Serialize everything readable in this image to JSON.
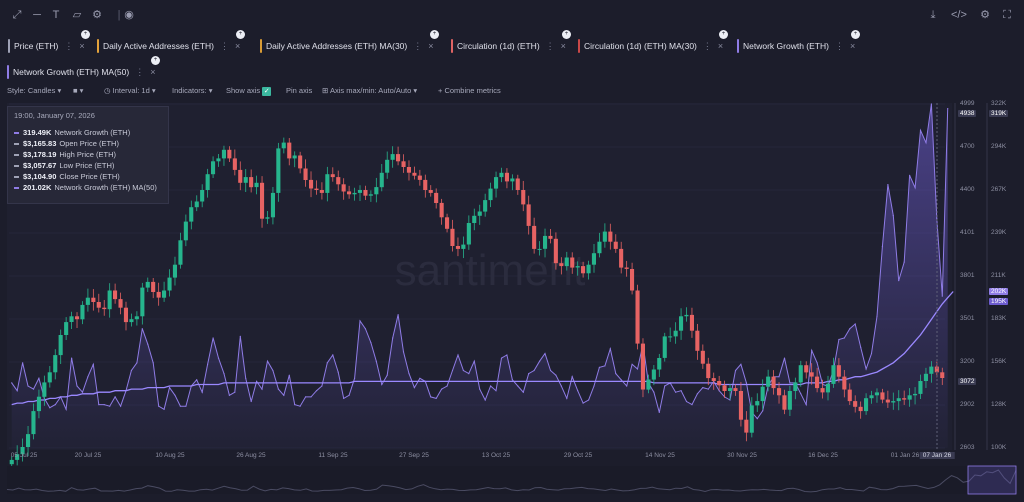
{
  "toolbar": {
    "left_icons": [
      "expand-icon",
      "line-tool-icon",
      "text-tool-icon",
      "note-icon",
      "settings-cog-icon",
      "eye-icon"
    ],
    "right_icons": [
      "download-icon",
      "embed-code-icon",
      "settings-icon",
      "fullscreen-icon"
    ]
  },
  "metrics": [
    {
      "label": "Price (ETH)",
      "color": "#9fa2b6"
    },
    {
      "label": "Daily Active Addresses (ETH)",
      "color": "#e3a23b"
    },
    {
      "label": "Daily Active Addresses (ETH) MA(30)",
      "color": "#d99b35"
    },
    {
      "label": "Circulation (1d) (ETH)",
      "color": "#e06464"
    },
    {
      "label": "Circulation (1d) (ETH) MA(30)",
      "color": "#c94848"
    },
    {
      "label": "Network Growth (ETH)",
      "color": "#8f7ce6"
    },
    {
      "label": "Network Growth (ETH) MA(50)",
      "color": "#8f7ce6"
    }
  ],
  "options": {
    "style": "Style: Candles",
    "interval": "Interval: 1d",
    "indicators": "Indicators:",
    "show_axis": "Show axis",
    "pin_axis": "Pin axis",
    "axis_max_min": "Axis max/min: Auto/Auto",
    "combine": "Combine metrics"
  },
  "tooltip": {
    "date": "19:00, January 07, 2026",
    "rows": [
      {
        "value": "319.49K",
        "label": "Network Growth (ETH)",
        "color": "#8f7ce6"
      },
      {
        "value": "$3,165.83",
        "label": "Open Price (ETH)",
        "color": "#9fa2b6"
      },
      {
        "value": "$3,178.19",
        "label": "High Price (ETH)",
        "color": "#9fa2b6"
      },
      {
        "value": "$3,057.67",
        "label": "Low Price (ETH)",
        "color": "#9fa2b6"
      },
      {
        "value": "$3,104.90",
        "label": "Close Price (ETH)",
        "color": "#9fa2b6"
      },
      {
        "value": "201.02K",
        "label": "Network Growth (ETH) MA(50)",
        "color": "#8f7ce6"
      }
    ]
  },
  "watermark": "santiment",
  "chart_data": {
    "type": "line",
    "x_ticks": [
      "05 Jul 25",
      "20 Jul 25",
      "10 Aug 25",
      "26 Aug 25",
      "11 Sep 25",
      "27 Sep 25",
      "13 Oct 25",
      "29 Oct 25",
      "14 Nov 25",
      "30 Nov 25",
      "16 Dec 25",
      "01 Jan 26",
      "07 Jan 26"
    ],
    "x_crosshair_label": "07 Jan 26",
    "price_axis": {
      "ticks": [
        "4999",
        "4700",
        "4400",
        "4101",
        "3801",
        "3501",
        "3200",
        "2902",
        "2603"
      ],
      "crosshair": "4938",
      "current": "3072"
    },
    "ng_axis": {
      "ticks": [
        "322K",
        "294K",
        "267K",
        "239K",
        "211K",
        "183K",
        "156K",
        "128K",
        "100K"
      ],
      "crosshair": "319K",
      "ma_badge": "202K",
      "current_badge": "195K"
    },
    "price_close": [
      2520,
      2560,
      2610,
      2700,
      2860,
      2960,
      3060,
      3130,
      3250,
      3390,
      3480,
      3520,
      3500,
      3600,
      3650,
      3620,
      3580,
      3570,
      3700,
      3640,
      3580,
      3480,
      3500,
      3520,
      3720,
      3760,
      3690,
      3650,
      3700,
      3790,
      3880,
      4050,
      4180,
      4280,
      4320,
      4400,
      4510,
      4600,
      4620,
      4680,
      4620,
      4540,
      4450,
      4490,
      4420,
      4450,
      4200,
      4210,
      4380,
      4690,
      4730,
      4620,
      4640,
      4550,
      4470,
      4410,
      4400,
      4380,
      4510,
      4490,
      4440,
      4390,
      4370,
      4380,
      4400,
      4360,
      4370,
      4420,
      4520,
      4610,
      4650,
      4600,
      4560,
      4520,
      4500,
      4470,
      4400,
      4380,
      4310,
      4210,
      4130,
      4010,
      3990,
      4020,
      4170,
      4220,
      4250,
      4330,
      4410,
      4490,
      4520,
      4460,
      4480,
      4400,
      4300,
      4150,
      3990,
      3990,
      4080,
      4060,
      3890,
      3870,
      3930,
      3860,
      3870,
      3820,
      3880,
      3960,
      4040,
      4110,
      4040,
      3990,
      3860,
      3850,
      3700,
      3330,
      3010,
      3080,
      3150,
      3230,
      3380,
      3380,
      3420,
      3520,
      3530,
      3420,
      3280,
      3190,
      3090,
      3070,
      3040,
      3000,
      3020,
      3000,
      2800,
      2710,
      2900,
      2930,
      3030,
      3100,
      3020,
      2970,
      2870,
      3000,
      3060,
      3180,
      3130,
      3100,
      3020,
      2990,
      3050,
      3180,
      3100,
      3010,
      2930,
      2890,
      2860,
      2950,
      2970,
      2990,
      2940,
      2920,
      2930,
      2950,
      2940,
      2970,
      2980,
      3070,
      3120,
      3170,
      3130,
      3090
    ],
    "price_range": [
      2603,
      4999
    ],
    "network_growth_k": [
      142,
      137,
      155,
      140,
      138,
      145,
      132,
      126,
      128,
      133,
      125,
      158,
      140,
      136,
      146,
      154,
      128,
      128,
      127,
      133,
      127,
      137,
      150,
      155,
      177,
      167,
      155,
      127,
      125,
      139,
      134,
      127,
      127,
      140,
      144,
      136,
      154,
      171,
      158,
      148,
      134,
      136,
      172,
      145,
      130,
      143,
      138,
      156,
      150,
      138,
      134,
      147,
      128,
      127,
      133,
      133,
      137,
      140,
      155,
      160,
      149,
      132,
      134,
      145,
      182,
      177,
      168,
      156,
      141,
      147,
      171,
      186,
      162,
      148,
      139,
      145,
      143,
      133,
      132,
      138,
      140,
      150,
      160,
      150,
      148,
      156,
      138,
      131,
      140,
      137,
      158,
      160,
      144,
      140,
      136,
      148,
      150,
      156,
      161,
      150,
      147,
      140,
      132,
      146,
      137,
      129,
      131,
      140,
      152,
      153,
      164,
      148,
      144,
      140,
      154,
      151,
      167,
      142,
      136,
      123,
      140,
      142,
      136,
      137,
      130,
      128,
      135,
      139,
      138,
      143,
      137,
      133,
      131,
      150,
      154,
      142,
      123,
      119,
      124,
      140,
      146,
      146,
      158,
      142,
      142,
      135,
      128,
      163,
      155,
      141,
      140,
      150,
      170,
      171,
      177,
      180,
      165,
      151,
      161,
      185,
      230,
      270,
      250,
      208,
      220,
      276,
      268,
      305,
      297,
      322,
      248,
      198,
      319
    ],
    "network_growth_ma_k": [
      128,
      129,
      129,
      130,
      130,
      131,
      131,
      132,
      132,
      133,
      133,
      134,
      134,
      135,
      135,
      135,
      136,
      136,
      136,
      137,
      137,
      137,
      138,
      138,
      138,
      139,
      139,
      139,
      139,
      140,
      140,
      140,
      140,
      140,
      141,
      141,
      141,
      141,
      141,
      142,
      142,
      142,
      142,
      142,
      142,
      142,
      142,
      142,
      142,
      142,
      142,
      142,
      142,
      142,
      142,
      142,
      142,
      142,
      142,
      142,
      142,
      142,
      142,
      143,
      143,
      143,
      143,
      143,
      143,
      143,
      143,
      143,
      143,
      143,
      143,
      143,
      143,
      143,
      143,
      143,
      143,
      143,
      143,
      143,
      143,
      143,
      143,
      143,
      143,
      143,
      143,
      143,
      143,
      143,
      143,
      143,
      143,
      143,
      143,
      143,
      143,
      143,
      143,
      143,
      143,
      143,
      143,
      143,
      143,
      143,
      143,
      143,
      143,
      143,
      143,
      143,
      143,
      143,
      142,
      142,
      142,
      142,
      142,
      142,
      142,
      142,
      142,
      142,
      142,
      142,
      141,
      141,
      141,
      141,
      141,
      141,
      141,
      141,
      141,
      141,
      141,
      141,
      141,
      141,
      141,
      141,
      142,
      142,
      142,
      142,
      143,
      143,
      144,
      144,
      145,
      146,
      146,
      147,
      148,
      149,
      151,
      153,
      155,
      158,
      161,
      165,
      169,
      173,
      178,
      183,
      188,
      193,
      197,
      201
    ],
    "ng_range": [
      100,
      322
    ]
  }
}
